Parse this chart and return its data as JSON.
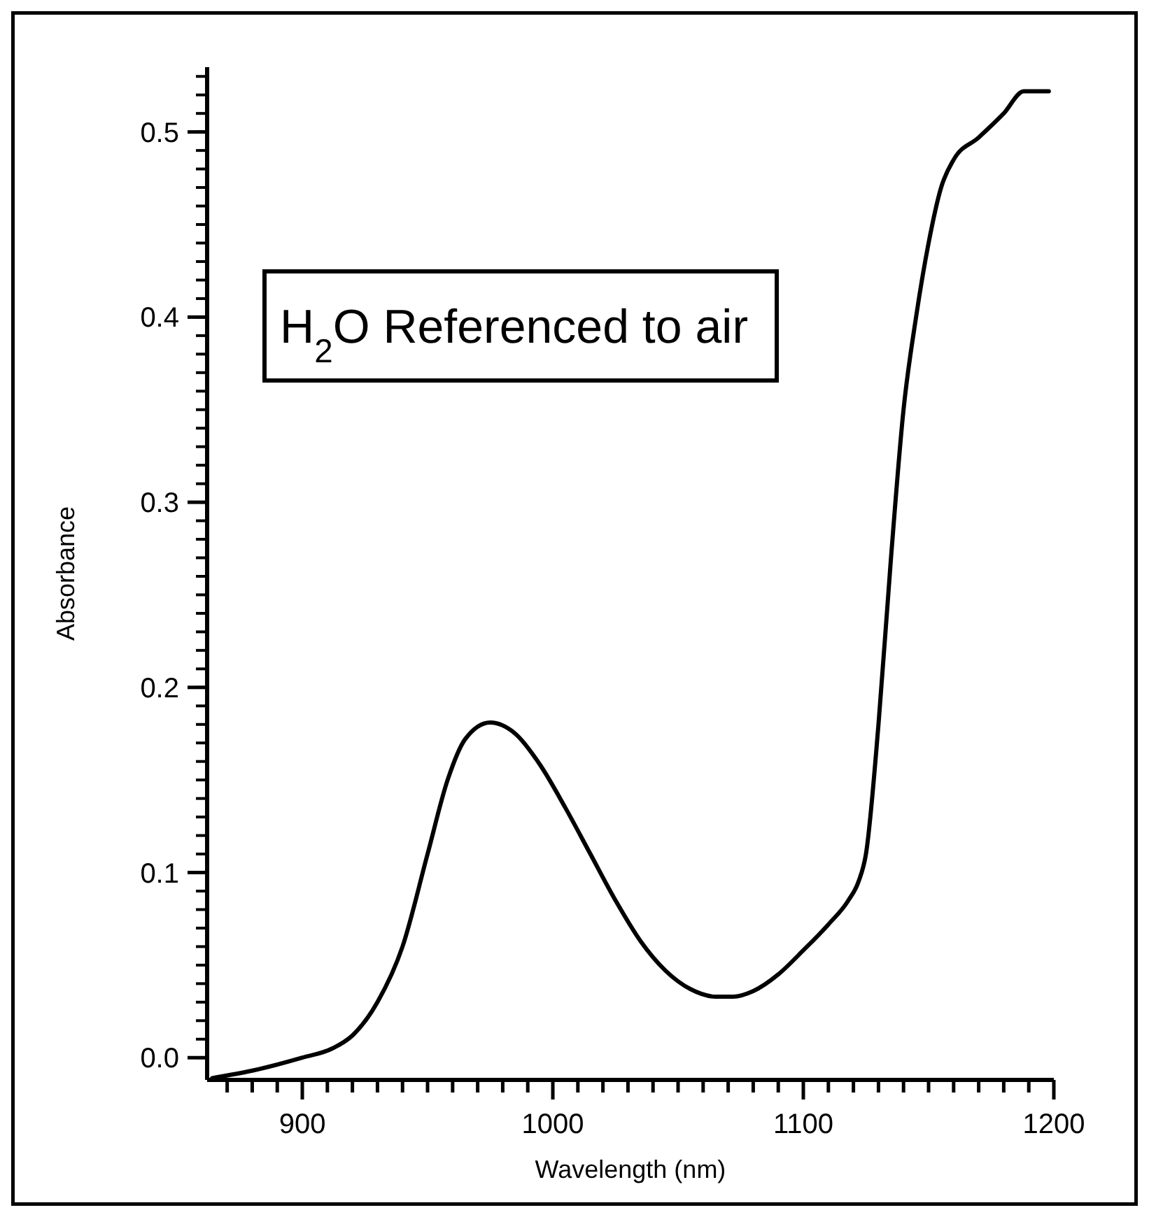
{
  "chart_data": {
    "type": "line",
    "xlabel": "Wavelength (nm)",
    "ylabel": "Absorbance",
    "annotations": [
      "H$_{2}$O Referenced to air"
    ],
    "xlim": [
      862,
      1200
    ],
    "ylim": [
      -0.012,
      0.535
    ],
    "xticks": [
      {
        "value": 870,
        "label": null
      },
      {
        "value": 880,
        "label": null
      },
      {
        "value": 890,
        "label": null
      },
      900,
      {
        "value": 910,
        "label": null
      },
      {
        "value": 920,
        "label": null
      },
      {
        "value": 930,
        "label": null
      },
      {
        "value": 940,
        "label": null
      },
      {
        "value": 950,
        "label": null
      },
      {
        "value": 960,
        "label": null
      },
      {
        "value": 970,
        "label": null
      },
      {
        "value": 980,
        "label": null
      },
      {
        "value": 990,
        "label": null
      },
      1000,
      {
        "value": 1010,
        "label": null
      },
      {
        "value": 1020,
        "label": null
      },
      {
        "value": 1030,
        "label": null
      },
      {
        "value": 1040,
        "label": null
      },
      {
        "value": 1050,
        "label": null
      },
      {
        "value": 1060,
        "label": null
      },
      {
        "value": 1070,
        "label": null
      },
      {
        "value": 1080,
        "label": null
      },
      {
        "value": 1090,
        "label": null
      },
      1100,
      {
        "value": 1110,
        "label": null
      },
      {
        "value": 1120,
        "label": null
      },
      {
        "value": 1130,
        "label": null
      },
      {
        "value": 1140,
        "label": null
      },
      {
        "value": 1150,
        "label": null
      },
      {
        "value": 1160,
        "label": null
      },
      {
        "value": 1170,
        "label": null
      },
      {
        "value": 1180,
        "label": null
      },
      {
        "value": 1190,
        "label": null
      },
      1200
    ],
    "yticks": [
      {
        "value": 0,
        "label": "0.0"
      },
      {
        "value": 0.1,
        "label": "0.1"
      },
      {
        "value": 0.2,
        "label": "0.2"
      },
      {
        "value": 0.3,
        "label": "0.3"
      },
      {
        "value": 0.4,
        "label": "0.4"
      },
      {
        "value": 0.5,
        "label": "0.5"
      }
    ],
    "grid": false,
    "marker": "none",
    "line_style": "solid",
    "series": [
      {
        "color": "#000000",
        "x": [
          864,
          880,
          900,
          912,
          920,
          930,
          940,
          950,
          958,
          965,
          975,
          985,
          995,
          1005,
          1015,
          1025,
          1035,
          1045,
          1055,
          1065,
          1072,
          1080,
          1090,
          1100,
          1110,
          1118,
          1122,
          1125,
          1130,
          1135,
          1140,
          1145,
          1150,
          1155,
          1160,
          1170,
          1180,
          1188,
          1198
        ],
        "values": [
          -0.011,
          -0.007,
          0.0,
          0.005,
          0.012,
          0.03,
          0.06,
          0.11,
          0.15,
          0.172,
          0.181,
          0.175,
          0.158,
          0.135,
          0.11,
          0.085,
          0.063,
          0.047,
          0.037,
          0.033,
          0.033,
          0.036,
          0.045,
          0.058,
          0.072,
          0.085,
          0.095,
          0.11,
          0.18,
          0.27,
          0.35,
          0.4,
          0.44,
          0.47,
          0.485,
          0.497,
          0.51,
          0.522,
          0.522
        ]
      }
    ]
  }
}
